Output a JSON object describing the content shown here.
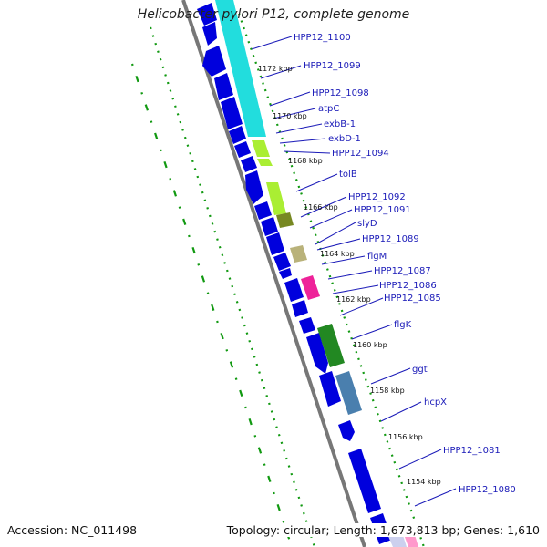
{
  "title": "Helicobacter pylori P12, complete genome",
  "accession": "Accession: NC_011498",
  "summary": "Topology: circular; Length: 1,673,813 bp; Genes: 1,610",
  "kbp_labels": [
    "1172 kbp",
    "1170 kbp",
    "1168 kbp",
    "1166 kbp",
    "1164 kbp",
    "1162 kbp",
    "1160 kbp",
    "1158 kbp",
    "1156 kbp",
    "1154 kbp"
  ],
  "gene_labels": [
    "HPP12_1100",
    "HPP12_1099",
    "HPP12_1098",
    "atpC",
    "exbB-1",
    "exbD-1",
    "HPP12_1094",
    "tolB",
    "HPP12_1092",
    "HPP12_1091",
    "slyD",
    "HPP12_1089",
    "flgM",
    "HPP12_1087",
    "HPP12_1086",
    "HPP12_1085",
    "flgK",
    "ggt",
    "hcpX",
    "HPP12_1081",
    "HPP12_1080"
  ],
  "colors": {
    "gene_blue": "#0000dd",
    "cyan": "#22dddd",
    "yellowgreen": "#aaee33",
    "olive": "#778822",
    "khaki": "#b9b27a",
    "magenta": "#ee2299",
    "green": "#228822",
    "steelblue": "#4a7fae",
    "backbone": "#777777",
    "dots": "#119911"
  }
}
